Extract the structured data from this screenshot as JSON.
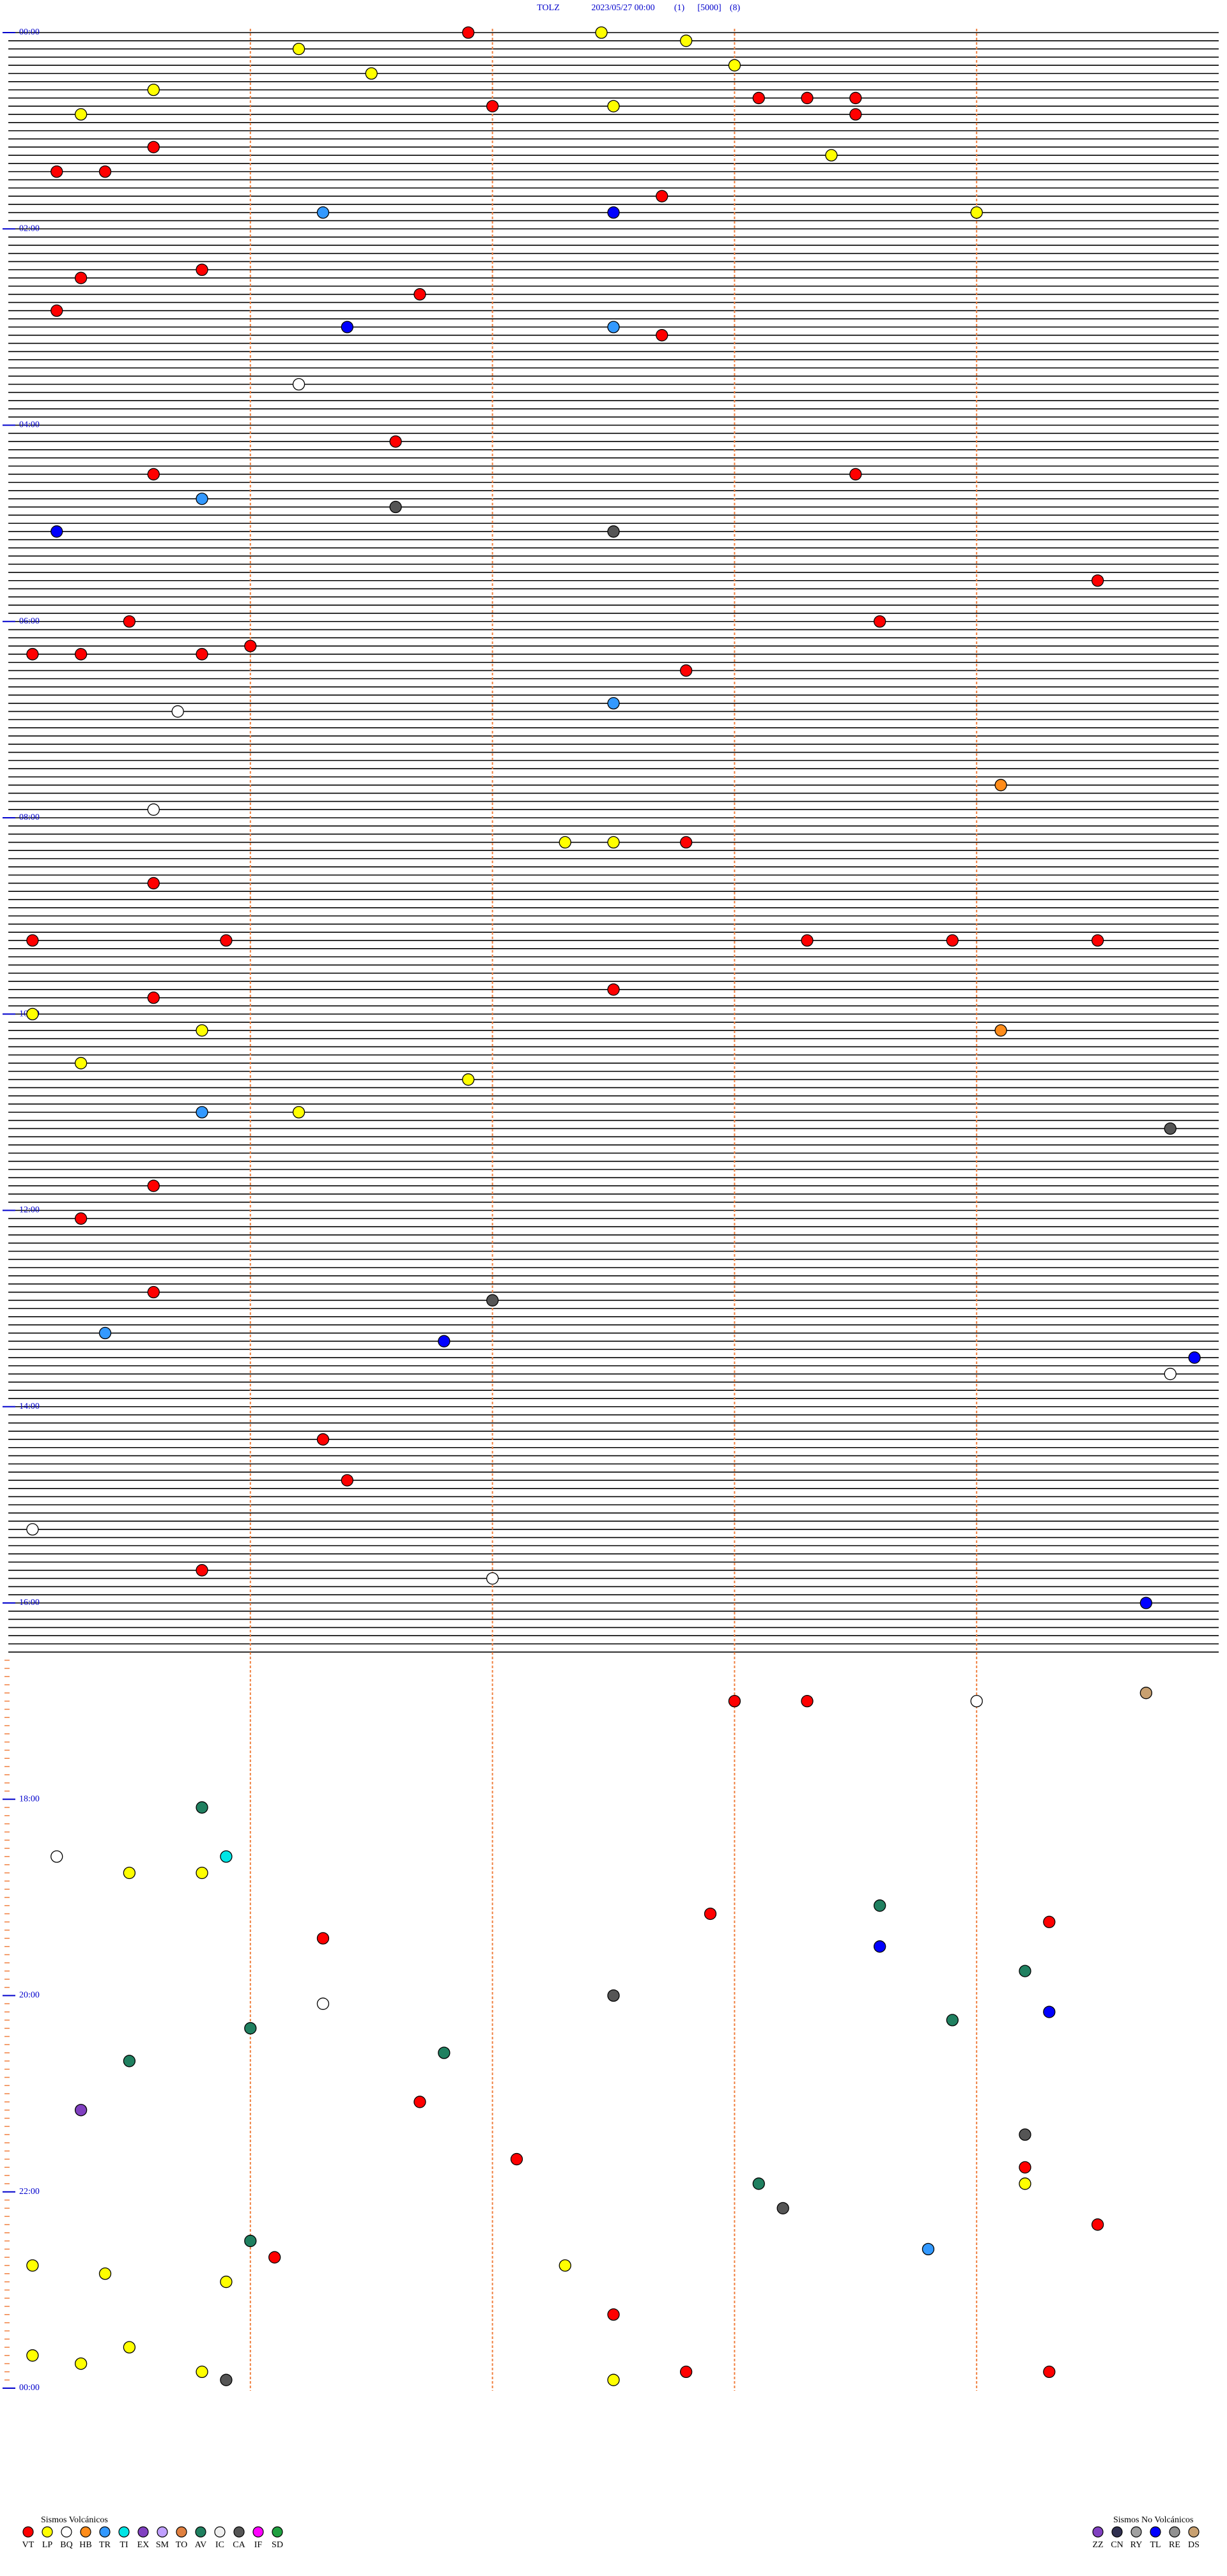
{
  "chart_data": {
    "type": "helicorder",
    "title": [
      "TOLZ",
      "2023/05/27 00:00",
      "(1)",
      "[5000]",
      "(8)"
    ],
    "xlim": [
      0,
      5
    ],
    "xticks": [
      1,
      2,
      3,
      4
    ],
    "ylim": [
      0,
      1440
    ],
    "yticks": [
      {
        "value": 0,
        "label": "00:00"
      },
      {
        "value": 120,
        "label": "02:00"
      },
      {
        "value": 240,
        "label": "04:00"
      },
      {
        "value": 360,
        "label": "06:00"
      },
      {
        "value": 480,
        "label": "08:00"
      },
      {
        "value": 600,
        "label": "10:00"
      },
      {
        "value": 720,
        "label": "12:00"
      },
      {
        "value": 840,
        "label": "14:00"
      },
      {
        "value": 960,
        "label": "16:00"
      },
      {
        "value": 1080,
        "label": "18:00"
      },
      {
        "value": 1200,
        "label": "20:00"
      },
      {
        "value": 1320,
        "label": "22:00"
      },
      {
        "value": 1440,
        "label": "00:00"
      }
    ],
    "trace_end": 995,
    "legend_volcanic": {
      "title": "Sismos Volcánicos",
      "codes": [
        "VT",
        "LP",
        "BQ",
        "HB",
        "TR",
        "TI",
        "EX",
        "SM",
        "TO",
        "AV",
        "IC",
        "CA",
        "IF",
        "SD"
      ],
      "colors": [
        "#ff0000",
        "#ffff00",
        "#ffffff",
        "#ff8c1a",
        "#3399ff",
        "#00e5e5",
        "#8040c0",
        "#c0a0ff",
        "#e08040",
        "#208060",
        "#f0f0f0",
        "#555555",
        "#ff00ff",
        "#20a040"
      ]
    },
    "legend_nonvolcanic": {
      "title": "Sismos No Volcánicos",
      "codes": [
        "ZZ",
        "CN",
        "RY",
        "TL",
        "RE",
        "DS"
      ],
      "colors": [
        "#8040c0",
        "#303050",
        "#a0a0a0",
        "#0000ff",
        "#909090",
        "#c8a070"
      ]
    },
    "event_minutes": [
      1.9,
      2.45,
      7.8,
      11.2,
      23.0,
      26.5,
      35.6,
      43.1,
      43.3,
      43.5,
      47.0,
      47.5,
      50.3,
      53.5,
      70.6,
      78.4,
      85.2,
      85.4,
      111.3,
      112.5,
      102.7,
      114.0,
      145.8,
      150.3,
      161.7,
      170.2,
      181.4,
      182.5,
      187.7,
      216.2,
      251.6,
      270.6,
      273.5,
      285.8,
      291.6,
      305.2,
      307.5,
      339.5,
      360.5,
      363.6,
      380.1,
      380.3,
      380.8,
      376.0,
      392.8,
      412.5,
      415.7,
      464.1,
      475.6,
      497.3,
      497.5,
      497.8,
      520.6,
      555.1,
      555.9,
      558.3,
      558.9,
      559.5,
      590.6,
      587.5,
      600.1,
      610.8,
      614.1,
      630.3,
      641.9,
      661.2,
      660.8,
      674.8,
      705.6,
      725.3,
      770.6,
      777.0,
      795.4,
      801.8,
      814.9,
      824.8,
      861.3,
      886.4,
      915.1,
      940.8,
      947.0,
      964.7,
      1023.0,
      1023.3,
      1024.0,
      1019.7,
      1085.8,
      1115.2,
      1125.5,
      1125.8,
      1115.9,
      1148.6,
      1152.9,
      1159.3,
      1173.6,
      1166.3,
      1189.2,
      1214.3,
      1202.5,
      1206.3,
      1218.9,
      1221.0,
      1236.8,
      1240.5,
      1270.3,
      1266.7,
      1289.2,
      1309.2,
      1319.2,
      1302.1,
      1318.1,
      1333.2,
      1344.5,
      1351.0,
      1358.8,
      1361.1,
      1365.1,
      1367.3,
      1370.4,
      1375.9,
      1397.5,
      1415.5,
      1420.1,
      1425.3,
      1432.8,
      1434.3,
      1430.8,
      1435.9,
      1437.5
    ],
    "event_types": [
      "VT",
      "LP",
      "LP",
      "LP",
      "LP",
      "LP",
      "LP",
      "VT",
      "VT",
      "VT",
      "VT",
      "LP",
      "LP",
      "VT",
      "VT",
      "LP",
      "VT",
      "VT",
      "TR",
      "TL",
      "VT",
      "LP",
      "VT",
      "VT",
      "VT",
      "VT",
      "TL",
      "TR",
      "VT",
      "BQ",
      "VT",
      "VT",
      "VT",
      "TR",
      "CA",
      "TL",
      "CA",
      "VT",
      "VT",
      "VT",
      "VT",
      "VT",
      "VT",
      "VT",
      "VT",
      "TR",
      "BQ",
      "HB",
      "BQ",
      "LP",
      "LP",
      "VT",
      "VT",
      "VT",
      "VT",
      "VT",
      "VT",
      "VT",
      "VT",
      "VT",
      "LP",
      "LP",
      "HB",
      "LP",
      "LP",
      "LP",
      "TR",
      "CA",
      "VT",
      "VT",
      "VT",
      "CA",
      "TR",
      "TL",
      "TL",
      "BQ",
      "VT",
      "VT",
      "BQ",
      "VT",
      "BQ",
      "TL",
      "VT",
      "VT",
      "BQ",
      "DS",
      "AV",
      "BQ",
      "LP",
      "LP",
      "TI",
      "AV",
      "VT",
      "VT",
      "TL",
      "VT",
      "AV",
      "TL",
      "CA",
      "BQ",
      "AV",
      "AV",
      "AV",
      "AV",
      "EX",
      "VT",
      "CA",
      "VT",
      "LP",
      "VT",
      "AV",
      "CA",
      "VT",
      "AV",
      "TR",
      "VT",
      "LP",
      "LP",
      "LP",
      "LP",
      "VT",
      "LP",
      "LP",
      "LP",
      "VT",
      "VT",
      "LP",
      "CA",
      "LP"
    ]
  }
}
